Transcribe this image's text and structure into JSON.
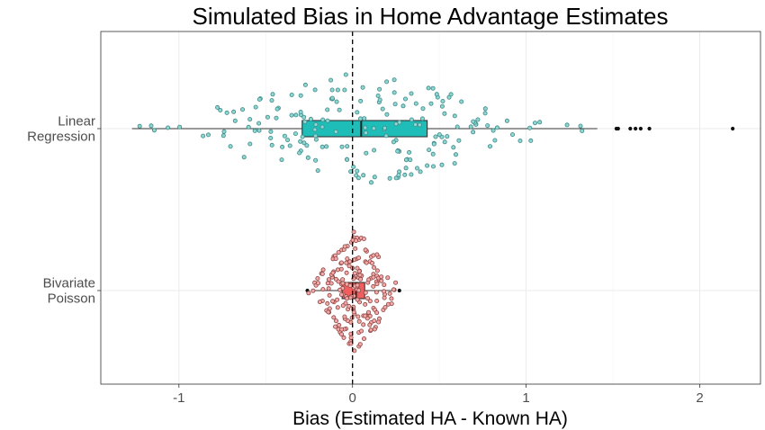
{
  "chart_data": {
    "type": "boxplot-with-jittered-points",
    "title": "Simulated Bias in Home Advantage Estimates",
    "xlabel": "Bias (Estimated HA - Known HA)",
    "ylabel": "",
    "xlim": [
      -1.45,
      2.35
    ],
    "x_ticks": [
      -1,
      0,
      1,
      2
    ],
    "x_tick_labels": [
      "-1",
      "0",
      "1",
      "2"
    ],
    "reference_line": {
      "x": 0,
      "style": "dashed"
    },
    "grid": true,
    "legend": "none",
    "groups": [
      {
        "label_lines": [
          "Linear",
          "Regression"
        ],
        "fill": "#1ebdb8",
        "point_fill": "#8fd6d3",
        "point_stroke": "#3d8a87",
        "box": {
          "q1": -0.29,
          "median": 0.05,
          "q3": 0.43,
          "whisker_low": -1.27,
          "whisker_high": 1.41
        },
        "outliers": [
          1.52,
          1.53,
          1.6,
          1.63,
          1.66,
          1.71,
          2.19
        ],
        "n_points": 200,
        "spread": 0.5,
        "points_range": [
          -1.27,
          2.19
        ]
      },
      {
        "label_lines": [
          "Bivariate",
          "Poisson"
        ],
        "fill": "#f25d5d",
        "point_fill": "#f3a9a6",
        "point_stroke": "#8c4545",
        "box": {
          "q1": -0.06,
          "median": 0.02,
          "q3": 0.07,
          "whisker_low": -0.24,
          "whisker_high": 0.25
        },
        "outliers": [
          -0.26,
          0.27
        ],
        "n_points": 200,
        "spread": 0.11,
        "points_range": [
          -0.26,
          0.27
        ]
      }
    ]
  }
}
